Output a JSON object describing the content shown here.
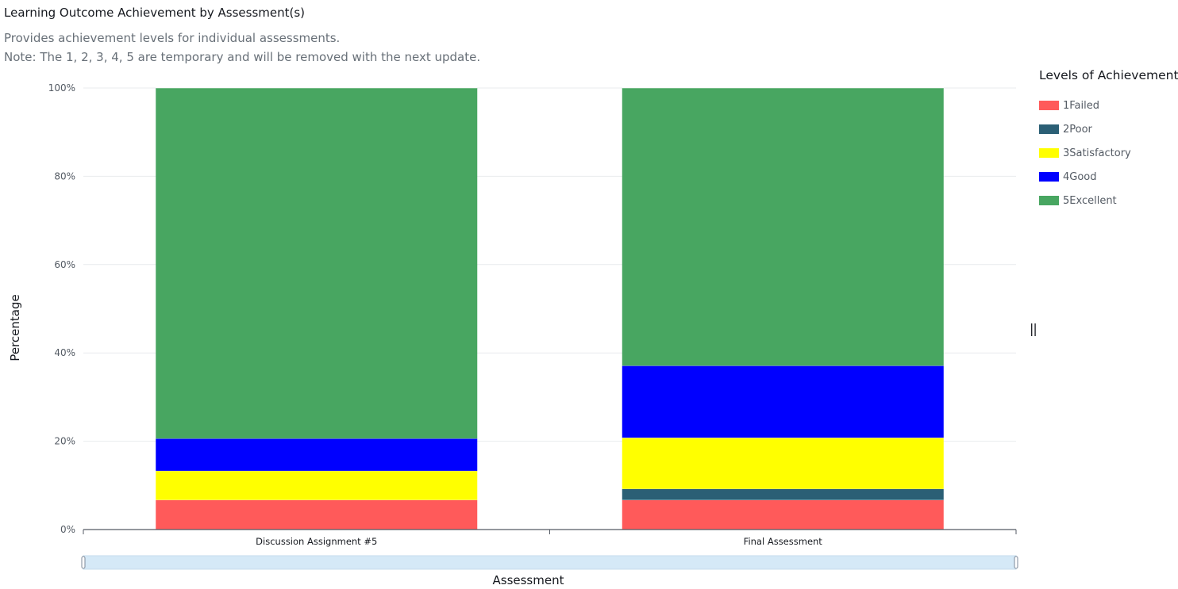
{
  "header": {
    "title": "Learning Outcome Achievement by Assessment(s)",
    "description": "Provides achievement levels for individual assessments.",
    "note": "Note: The 1, 2, 3, 4, 5 are temporary and will be removed with the next update."
  },
  "legend": {
    "title": "Levels of Achievement",
    "items": [
      {
        "label": "1Failed",
        "color": "#ff5a5a"
      },
      {
        "label": "2Poor",
        "color": "#2b5f75"
      },
      {
        "label": "3Satisfactory",
        "color": "#ffff00"
      },
      {
        "label": "4Good",
        "color": "#0000ff"
      },
      {
        "label": "5Excellent",
        "color": "#48a661"
      }
    ]
  },
  "resize_handle_glyph": "||",
  "chart_data": {
    "type": "bar",
    "stacked": true,
    "categories": [
      "Discussion Assignment #5",
      "Final Assessment"
    ],
    "series": [
      {
        "name": "1Failed",
        "color": "#ff5a5a",
        "values": [
          6.7,
          6.7
        ]
      },
      {
        "name": "2Poor",
        "color": "#2b5f75",
        "values": [
          0,
          2.5
        ]
      },
      {
        "name": "3Satisfactory",
        "color": "#ffff00",
        "values": [
          6.6,
          11.6
        ]
      },
      {
        "name": "4Good",
        "color": "#0000ff",
        "values": [
          7.3,
          16.3
        ]
      },
      {
        "name": "5Excellent",
        "color": "#48a661",
        "values": [
          79.4,
          62.9
        ]
      }
    ],
    "xlabel": "Assessment",
    "ylabel": "Percentage",
    "ylim": [
      0,
      100
    ],
    "yticks": [
      "0%",
      "20%",
      "40%",
      "60%",
      "80%",
      "100%"
    ],
    "ytick_values": [
      0,
      20,
      40,
      60,
      80,
      100
    ],
    "grid": true,
    "legend_position": "right"
  }
}
